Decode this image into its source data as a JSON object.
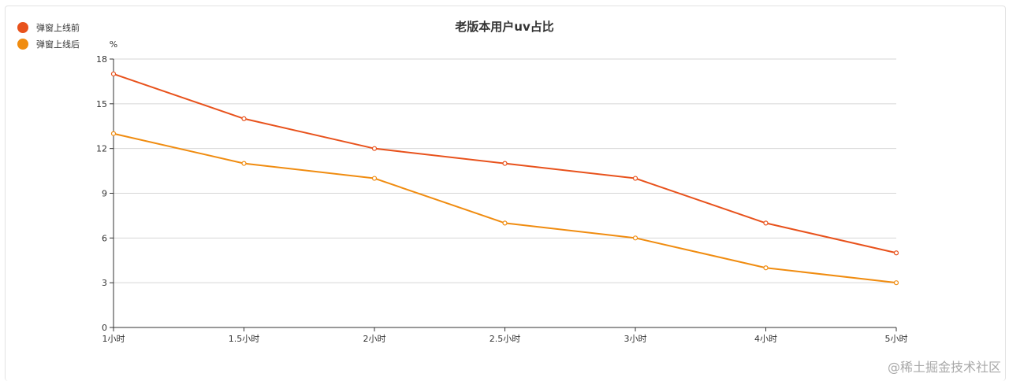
{
  "chart_data": {
    "type": "line",
    "title": "老版本用户uv占比",
    "ylabel": "%",
    "xlabel": "",
    "categories": [
      "1小时",
      "1.5小时",
      "2小时",
      "2.5小时",
      "3小时",
      "4小时",
      "5小时"
    ],
    "ylim": [
      0,
      18
    ],
    "yticks": [
      0,
      3,
      6,
      9,
      12,
      15,
      18
    ],
    "grid": true,
    "legend_position": "top-left",
    "series": [
      {
        "name": "弹窗上线前",
        "color": "#e8521c",
        "values": [
          17,
          14,
          12,
          11,
          10,
          7,
          5
        ]
      },
      {
        "name": "弹窗上线后",
        "color": "#f08c10",
        "values": [
          13,
          11,
          10,
          7,
          6,
          4,
          3
        ]
      }
    ]
  },
  "watermark": "@稀土掘金技术社区"
}
